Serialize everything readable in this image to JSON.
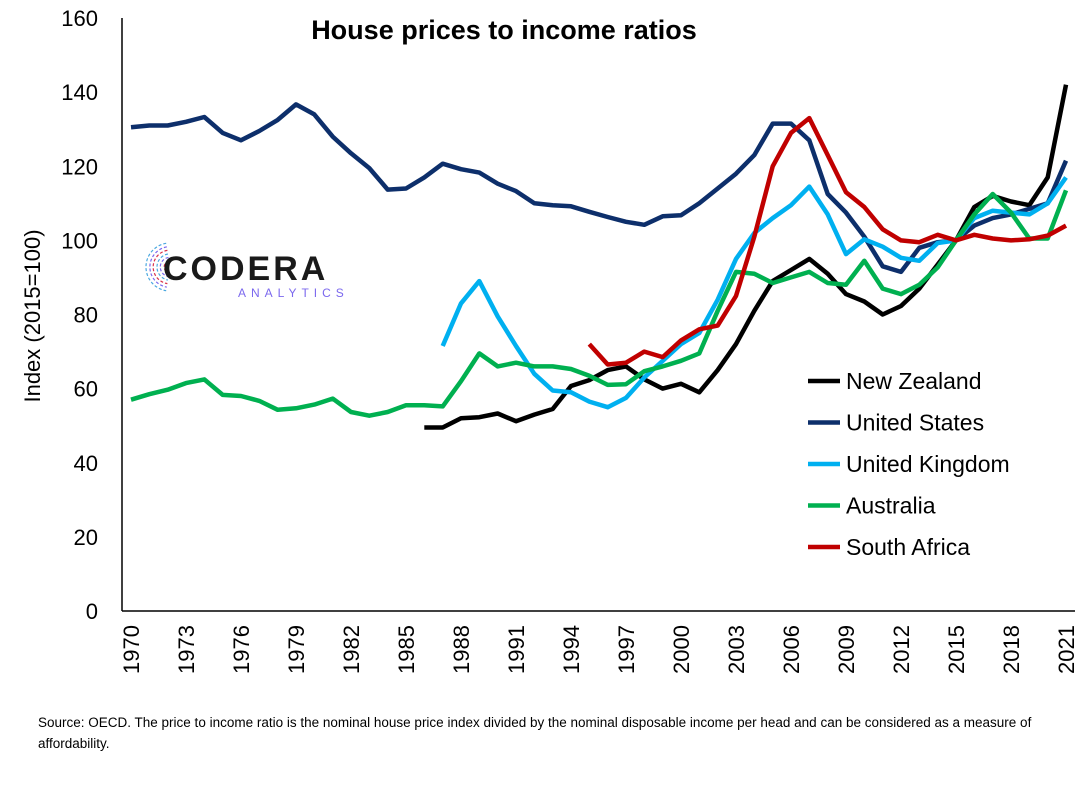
{
  "chart_data": {
    "type": "line",
    "title": "House prices to income ratios",
    "ylabel": "Index (2015=100)",
    "xlabel": "",
    "ylim": [
      0,
      160
    ],
    "xlim": [
      1970,
      2021
    ],
    "yticks": [
      0,
      20,
      40,
      60,
      80,
      100,
      120,
      140,
      160
    ],
    "xticks": [
      "1970",
      "1973",
      "1976",
      "1979",
      "1982",
      "1985",
      "1988",
      "1991",
      "1994",
      "1997",
      "2000",
      "2003",
      "2006",
      "2009",
      "2012",
      "2015",
      "2018",
      "2021"
    ],
    "grid": false,
    "legend_position": "right",
    "series": [
      {
        "name": "New Zealand",
        "color": "#000000",
        "x": [
          1986,
          1987,
          1988,
          1989,
          1990,
          1991,
          1992,
          1993,
          1994,
          1995,
          1996,
          1997,
          1998,
          1999,
          2000,
          2001,
          2002,
          2003,
          2004,
          2005,
          2006,
          2007,
          2008,
          2009,
          2010,
          2011,
          2012,
          2013,
          2014,
          2015,
          2016,
          2017,
          2018,
          2019,
          2020,
          2021
        ],
        "values": [
          49.5,
          49.5,
          52,
          52.3,
          53.3,
          51.2,
          53,
          54.5,
          60.7,
          62.3,
          65,
          66,
          62.5,
          60,
          61.3,
          59,
          65,
          72,
          81,
          89,
          92,
          95,
          91,
          85.5,
          83.5,
          80,
          82.3,
          87,
          93.5,
          100,
          109,
          112,
          110.5,
          109.5,
          117,
          142
        ]
      },
      {
        "name": "United States",
        "color": "#0d2f6b",
        "x": [
          1970,
          1971,
          1972,
          1973,
          1974,
          1975,
          1976,
          1977,
          1978,
          1979,
          1980,
          1981,
          1982,
          1983,
          1984,
          1985,
          1986,
          1987,
          1988,
          1989,
          1990,
          1991,
          1992,
          1993,
          1994,
          1995,
          1996,
          1997,
          1998,
          1999,
          2000,
          2001,
          2002,
          2003,
          2004,
          2005,
          2006,
          2007,
          2008,
          2009,
          2010,
          2011,
          2012,
          2013,
          2014,
          2015,
          2016,
          2017,
          2018,
          2019,
          2020,
          2021
        ],
        "values": [
          130.5,
          131,
          131,
          132,
          133.3,
          129,
          127,
          129.5,
          132.5,
          136.7,
          134,
          128,
          123.5,
          119.5,
          113.7,
          114,
          117,
          120.7,
          119.2,
          118.3,
          115.3,
          113.3,
          110,
          109.5,
          109.2,
          107.7,
          106.3,
          105,
          104.2,
          106.5,
          106.8,
          110,
          114,
          118,
          123,
          131.5,
          131.5,
          127,
          112.5,
          107.5,
          101,
          93,
          91.5,
          98,
          99.5,
          100,
          104,
          106,
          107,
          108.5,
          110,
          121.5
        ]
      },
      {
        "name": "United Kingdom",
        "color": "#00b0f0",
        "x": [
          1987,
          1988,
          1989,
          1990,
          1991,
          1992,
          1993,
          1994,
          1995,
          1996,
          1997,
          1998,
          1999,
          2000,
          2001,
          2002,
          2003,
          2004,
          2005,
          2006,
          2007,
          2008,
          2009,
          2010,
          2011,
          2012,
          2013,
          2014,
          2015,
          2016,
          2017,
          2018,
          2019,
          2020,
          2021
        ],
        "values": [
          71.5,
          83,
          89,
          79.5,
          71.5,
          64,
          59.5,
          59,
          56.5,
          55,
          57.5,
          63,
          67.5,
          72,
          75,
          84,
          95,
          102,
          106,
          109.5,
          114.5,
          107,
          96.3,
          100.3,
          98.3,
          95.3,
          94.5,
          99.3,
          100,
          106,
          108,
          107.5,
          107,
          110,
          117
        ]
      },
      {
        "name": "Australia",
        "color": "#00b050",
        "x": [
          1970,
          1971,
          1972,
          1973,
          1974,
          1975,
          1976,
          1977,
          1978,
          1979,
          1980,
          1981,
          1982,
          1983,
          1984,
          1985,
          1986,
          1987,
          1988,
          1989,
          1990,
          1991,
          1992,
          1993,
          1994,
          1995,
          1996,
          1997,
          1998,
          1999,
          2000,
          2001,
          2002,
          2003,
          2004,
          2005,
          2006,
          2007,
          2008,
          2009,
          2010,
          2011,
          2012,
          2013,
          2014,
          2015,
          2016,
          2017,
          2018,
          2019,
          2020,
          2021
        ],
        "values": [
          57,
          58.5,
          59.7,
          61.5,
          62.5,
          58.3,
          58,
          56.7,
          54.3,
          54.7,
          55.7,
          57.3,
          53.7,
          52.7,
          53.7,
          55.5,
          55.5,
          55.2,
          62,
          69.5,
          66,
          67,
          66,
          66,
          65.3,
          63.5,
          61,
          61.2,
          64.7,
          66,
          67.5,
          69.5,
          81,
          91.5,
          91,
          88.5,
          90,
          91.5,
          88.5,
          88,
          94.5,
          87,
          85.5,
          88,
          92.7,
          100,
          107,
          112.5,
          107.5,
          100.5,
          100.5,
          113.5
        ]
      },
      {
        "name": "South Africa",
        "color": "#c00000",
        "x": [
          1995,
          1996,
          1997,
          1998,
          1999,
          2000,
          2001,
          2002,
          2003,
          2004,
          2005,
          2006,
          2007,
          2008,
          2009,
          2010,
          2011,
          2012,
          2013,
          2014,
          2015,
          2016,
          2017,
          2018,
          2019,
          2020,
          2021
        ],
        "values": [
          72,
          66.5,
          67,
          70,
          68.5,
          73,
          76,
          77,
          85,
          101,
          120,
          129,
          133,
          123,
          113,
          109,
          103,
          100,
          99.5,
          101.5,
          100,
          101.5,
          100.5,
          100,
          100.3,
          101.3,
          104
        ]
      }
    ]
  },
  "logo": {
    "name": "CODERA",
    "tagline": "ANALYTICS",
    "colors": [
      "#d9334c",
      "#7b68ee",
      "#4aa8e0"
    ]
  },
  "source_note": "Source: OECD. The price to income ratio is the nominal house price index divided by the nominal disposable income per head and can be considered as a measure of affordability."
}
